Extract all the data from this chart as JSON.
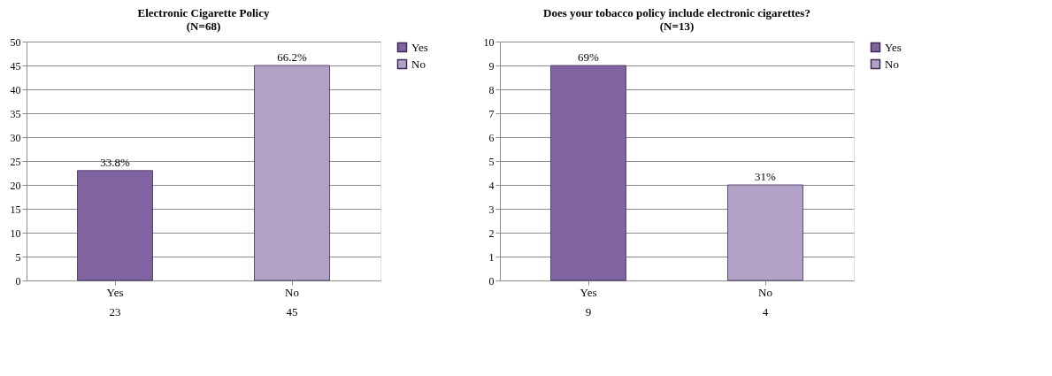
{
  "chart_data": [
    {
      "type": "bar",
      "title": "Electronic Cigarette Policy\n(N=68)",
      "categories": [
        "Yes",
        "No"
      ],
      "series": [
        {
          "name": "Yes",
          "color": "#8064a2",
          "values": [
            23,
            null
          ]
        },
        {
          "name": "No",
          "color": "#b3a2c7",
          "values": [
            null,
            45
          ]
        }
      ],
      "annotations": [
        {
          "text": "33.8%",
          "x": "Yes",
          "y": 23
        },
        {
          "text": "66.2%",
          "x": "No",
          "y": 45
        }
      ],
      "data_labels": true,
      "ylim": [
        0,
        50
      ],
      "yticks": [
        0,
        5,
        10,
        15,
        20,
        25,
        30,
        35,
        40,
        45,
        50
      ],
      "grid": "y",
      "legend": "right"
    },
    {
      "type": "bar",
      "title": "Does your tobacco policy include electronic cigarettes?\n(N=13)",
      "categories": [
        "Yes",
        "No"
      ],
      "series": [
        {
          "name": "Yes",
          "color": "#8064a2",
          "values": [
            9,
            null
          ]
        },
        {
          "name": "No",
          "color": "#b3a2c7",
          "values": [
            null,
            4
          ]
        }
      ],
      "annotations": [
        {
          "text": "69%",
          "x": "Yes",
          "y": 9
        },
        {
          "text": "31%",
          "x": "No",
          "y": 4
        }
      ],
      "data_labels": true,
      "ylim": [
        0,
        10
      ],
      "yticks": [
        0,
        1,
        2,
        3,
        4,
        5,
        6,
        7,
        8,
        9,
        10
      ],
      "grid": "y",
      "legend": "right"
    }
  ]
}
